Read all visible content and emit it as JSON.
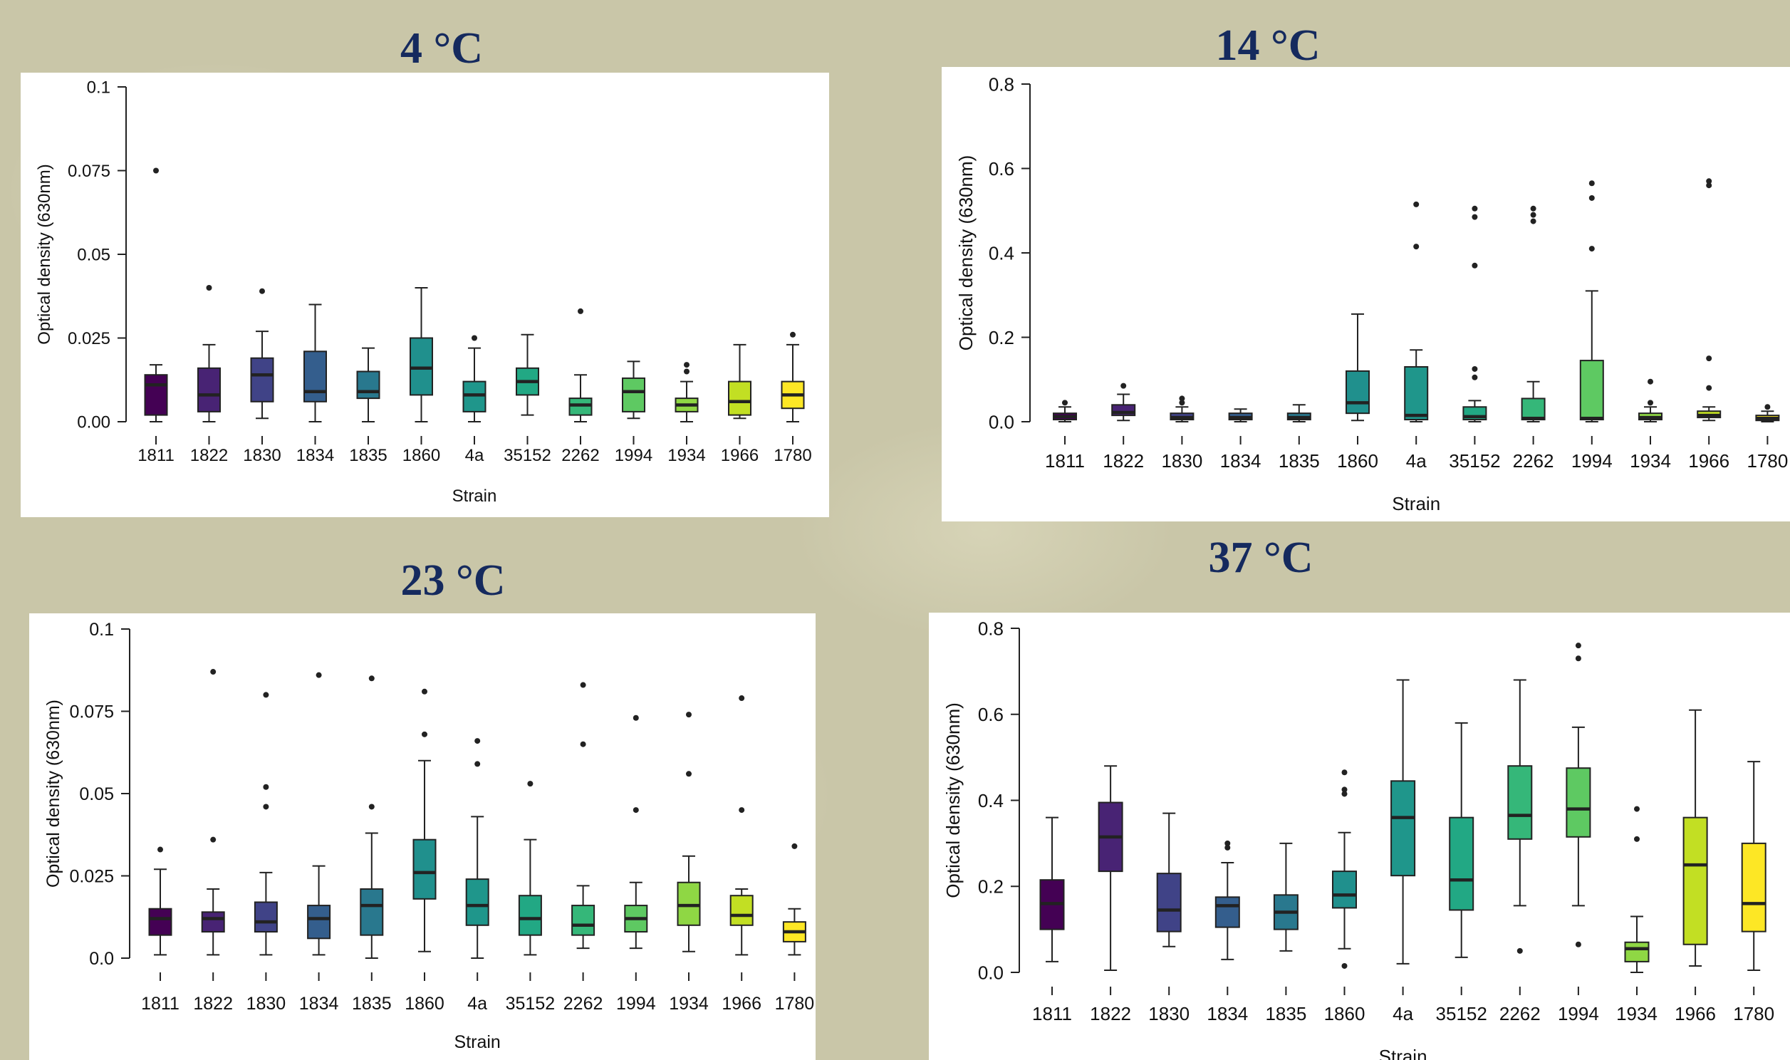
{
  "chart_data": [
    {
      "type": "box",
      "title": "4 °C",
      "xlabel": "Strain",
      "ylabel": "Optical density (630nm)",
      "ylim": [
        0,
        0.1
      ],
      "yticks": [
        0.0,
        0.025,
        0.05,
        0.075,
        0.1
      ],
      "ytick_labels": [
        "0.00",
        "0.025",
        "0.05",
        "0.075",
        "0.1"
      ],
      "categories": [
        "1811",
        "1822",
        "1830",
        "1834",
        "1835",
        "1860",
        "4a",
        "35152",
        "2262",
        "1994",
        "1934",
        "1966",
        "1780"
      ],
      "boxes": [
        {
          "min": 0.0,
          "q1": 0.002,
          "median": 0.011,
          "q3": 0.014,
          "max": 0.017,
          "outliers": [
            0.075
          ]
        },
        {
          "min": 0.0,
          "q1": 0.003,
          "median": 0.008,
          "q3": 0.016,
          "max": 0.023,
          "outliers": [
            0.04
          ]
        },
        {
          "min": 0.001,
          "q1": 0.006,
          "median": 0.014,
          "q3": 0.019,
          "max": 0.027,
          "outliers": [
            0.039
          ]
        },
        {
          "min": 0.0,
          "q1": 0.006,
          "median": 0.009,
          "q3": 0.021,
          "max": 0.035,
          "outliers": []
        },
        {
          "min": 0.0,
          "q1": 0.007,
          "median": 0.009,
          "q3": 0.015,
          "max": 0.022,
          "outliers": []
        },
        {
          "min": 0.0,
          "q1": 0.008,
          "median": 0.016,
          "q3": 0.025,
          "max": 0.04,
          "outliers": []
        },
        {
          "min": 0.0,
          "q1": 0.003,
          "median": 0.008,
          "q3": 0.012,
          "max": 0.022,
          "outliers": [
            0.025
          ]
        },
        {
          "min": 0.002,
          "q1": 0.008,
          "median": 0.012,
          "q3": 0.016,
          "max": 0.026,
          "outliers": []
        },
        {
          "min": 0.0,
          "q1": 0.002,
          "median": 0.005,
          "q3": 0.007,
          "max": 0.014,
          "outliers": [
            0.033
          ]
        },
        {
          "min": 0.001,
          "q1": 0.003,
          "median": 0.009,
          "q3": 0.013,
          "max": 0.018,
          "outliers": []
        },
        {
          "min": 0.0,
          "q1": 0.003,
          "median": 0.005,
          "q3": 0.007,
          "max": 0.012,
          "outliers": [
            0.015,
            0.017
          ]
        },
        {
          "min": 0.001,
          "q1": 0.002,
          "median": 0.006,
          "q3": 0.012,
          "max": 0.023,
          "outliers": []
        },
        {
          "min": 0.0,
          "q1": 0.004,
          "median": 0.008,
          "q3": 0.012,
          "max": 0.023,
          "outliers": [
            0.026
          ]
        }
      ]
    },
    {
      "type": "box",
      "title": "14 °C",
      "xlabel": "Strain",
      "ylabel": "Optical density (630nm)",
      "ylim": [
        0,
        0.8
      ],
      "yticks": [
        0.0,
        0.2,
        0.4,
        0.6,
        0.8
      ],
      "ytick_labels": [
        "0.0",
        "0.2",
        "0.4",
        "0.6",
        "0.8"
      ],
      "categories": [
        "1811",
        "1822",
        "1830",
        "1834",
        "1835",
        "1860",
        "4a",
        "35152",
        "2262",
        "1994",
        "1934",
        "1966",
        "1780"
      ],
      "boxes": [
        {
          "min": 0.0,
          "q1": 0.005,
          "median": 0.012,
          "q3": 0.02,
          "max": 0.035,
          "outliers": [
            0.045
          ]
        },
        {
          "min": 0.003,
          "q1": 0.015,
          "median": 0.022,
          "q3": 0.04,
          "max": 0.065,
          "outliers": [
            0.085
          ]
        },
        {
          "min": 0.0,
          "q1": 0.005,
          "median": 0.01,
          "q3": 0.02,
          "max": 0.035,
          "outliers": [
            0.045,
            0.055
          ]
        },
        {
          "min": 0.0,
          "q1": 0.005,
          "median": 0.01,
          "q3": 0.02,
          "max": 0.03,
          "outliers": []
        },
        {
          "min": 0.0,
          "q1": 0.005,
          "median": 0.01,
          "q3": 0.02,
          "max": 0.04,
          "outliers": []
        },
        {
          "min": 0.003,
          "q1": 0.02,
          "median": 0.045,
          "q3": 0.12,
          "max": 0.255,
          "outliers": []
        },
        {
          "min": 0.0,
          "q1": 0.005,
          "median": 0.015,
          "q3": 0.13,
          "max": 0.17,
          "outliers": [
            0.415,
            0.515
          ]
        },
        {
          "min": 0.0,
          "q1": 0.005,
          "median": 0.012,
          "q3": 0.035,
          "max": 0.05,
          "outliers": [
            0.105,
            0.125,
            0.37,
            0.485,
            0.505
          ]
        },
        {
          "min": 0.0,
          "q1": 0.005,
          "median": 0.008,
          "q3": 0.055,
          "max": 0.095,
          "outliers": [
            0.475,
            0.49,
            0.505
          ]
        },
        {
          "min": 0.0,
          "q1": 0.005,
          "median": 0.008,
          "q3": 0.145,
          "max": 0.31,
          "outliers": [
            0.41,
            0.53,
            0.565
          ]
        },
        {
          "min": 0.0,
          "q1": 0.005,
          "median": 0.01,
          "q3": 0.02,
          "max": 0.035,
          "outliers": [
            0.045,
            0.095
          ]
        },
        {
          "min": 0.003,
          "q1": 0.01,
          "median": 0.015,
          "q3": 0.025,
          "max": 0.035,
          "outliers": [
            0.08,
            0.15,
            0.56,
            0.57
          ]
        },
        {
          "min": 0.0,
          "q1": 0.003,
          "median": 0.008,
          "q3": 0.015,
          "max": 0.025,
          "outliers": [
            0.035
          ]
        }
      ]
    },
    {
      "type": "box",
      "title": "23 °C",
      "xlabel": "Strain",
      "ylabel": "Optical density (630nm)",
      "ylim": [
        0,
        0.1
      ],
      "yticks": [
        0.0,
        0.025,
        0.05,
        0.075,
        0.1
      ],
      "ytick_labels": [
        "0.0",
        "0.025",
        "0.05",
        "0.075",
        "0.1"
      ],
      "categories": [
        "1811",
        "1822",
        "1830",
        "1834",
        "1835",
        "1860",
        "4a",
        "35152",
        "2262",
        "1994",
        "1934",
        "1966",
        "1780"
      ],
      "boxes": [
        {
          "min": 0.001,
          "q1": 0.007,
          "median": 0.012,
          "q3": 0.015,
          "max": 0.027,
          "outliers": [
            0.033
          ]
        },
        {
          "min": 0.001,
          "q1": 0.008,
          "median": 0.012,
          "q3": 0.014,
          "max": 0.021,
          "outliers": [
            0.036,
            0.087
          ]
        },
        {
          "min": 0.001,
          "q1": 0.008,
          "median": 0.011,
          "q3": 0.017,
          "max": 0.026,
          "outliers": [
            0.046,
            0.052,
            0.08
          ]
        },
        {
          "min": 0.001,
          "q1": 0.006,
          "median": 0.012,
          "q3": 0.016,
          "max": 0.028,
          "outliers": [
            0.086
          ]
        },
        {
          "min": 0.0,
          "q1": 0.007,
          "median": 0.016,
          "q3": 0.021,
          "max": 0.038,
          "outliers": [
            0.046,
            0.085
          ]
        },
        {
          "min": 0.002,
          "q1": 0.018,
          "median": 0.026,
          "q3": 0.036,
          "max": 0.06,
          "outliers": [
            0.068,
            0.081
          ]
        },
        {
          "min": 0.0,
          "q1": 0.01,
          "median": 0.016,
          "q3": 0.024,
          "max": 0.043,
          "outliers": [
            0.059,
            0.066
          ]
        },
        {
          "min": 0.001,
          "q1": 0.007,
          "median": 0.012,
          "q3": 0.019,
          "max": 0.036,
          "outliers": [
            0.053
          ]
        },
        {
          "min": 0.003,
          "q1": 0.007,
          "median": 0.01,
          "q3": 0.016,
          "max": 0.022,
          "outliers": [
            0.065,
            0.083
          ]
        },
        {
          "min": 0.003,
          "q1": 0.008,
          "median": 0.012,
          "q3": 0.016,
          "max": 0.023,
          "outliers": [
            0.045,
            0.073
          ]
        },
        {
          "min": 0.002,
          "q1": 0.01,
          "median": 0.016,
          "q3": 0.023,
          "max": 0.031,
          "outliers": [
            0.056,
            0.074
          ]
        },
        {
          "min": 0.001,
          "q1": 0.01,
          "median": 0.013,
          "q3": 0.019,
          "max": 0.021,
          "outliers": [
            0.045,
            0.079
          ]
        },
        {
          "min": 0.001,
          "q1": 0.005,
          "median": 0.008,
          "q3": 0.011,
          "max": 0.015,
          "outliers": [
            0.034
          ]
        }
      ]
    },
    {
      "type": "box",
      "title": "37 °C",
      "xlabel": "Strain",
      "ylabel": "Optical density (630nm)",
      "ylim": [
        0,
        0.8
      ],
      "yticks": [
        0.0,
        0.2,
        0.4,
        0.6,
        0.8
      ],
      "ytick_labels": [
        "0.0",
        "0.2",
        "0.4",
        "0.6",
        "0.8"
      ],
      "categories": [
        "1811",
        "1822",
        "1830",
        "1834",
        "1835",
        "1860",
        "4a",
        "35152",
        "2262",
        "1994",
        "1934",
        "1966",
        "1780"
      ],
      "boxes": [
        {
          "min": 0.025,
          "q1": 0.1,
          "median": 0.16,
          "q3": 0.215,
          "max": 0.36,
          "outliers": []
        },
        {
          "min": 0.005,
          "q1": 0.235,
          "median": 0.315,
          "q3": 0.395,
          "max": 0.48,
          "outliers": []
        },
        {
          "min": 0.06,
          "q1": 0.095,
          "median": 0.145,
          "q3": 0.23,
          "max": 0.37,
          "outliers": []
        },
        {
          "min": 0.03,
          "q1": 0.105,
          "median": 0.155,
          "q3": 0.175,
          "max": 0.255,
          "outliers": [
            0.29,
            0.3
          ]
        },
        {
          "min": 0.05,
          "q1": 0.1,
          "median": 0.14,
          "q3": 0.18,
          "max": 0.3,
          "outliers": []
        },
        {
          "min": 0.055,
          "q1": 0.15,
          "median": 0.18,
          "q3": 0.235,
          "max": 0.325,
          "outliers": [
            0.015,
            0.415,
            0.425,
            0.465
          ]
        },
        {
          "min": 0.02,
          "q1": 0.225,
          "median": 0.36,
          "q3": 0.445,
          "max": 0.68,
          "outliers": []
        },
        {
          "min": 0.035,
          "q1": 0.145,
          "median": 0.215,
          "q3": 0.36,
          "max": 0.58,
          "outliers": []
        },
        {
          "min": 0.155,
          "q1": 0.31,
          "median": 0.365,
          "q3": 0.48,
          "max": 0.68,
          "outliers": [
            0.05
          ]
        },
        {
          "min": 0.155,
          "q1": 0.315,
          "median": 0.38,
          "q3": 0.475,
          "max": 0.57,
          "outliers": [
            0.065,
            0.73,
            0.76
          ]
        },
        {
          "min": 0.0,
          "q1": 0.025,
          "median": 0.055,
          "q3": 0.07,
          "max": 0.13,
          "outliers": [
            0.31,
            0.38
          ]
        },
        {
          "min": 0.015,
          "q1": 0.065,
          "median": 0.25,
          "q3": 0.36,
          "max": 0.61,
          "outliers": []
        },
        {
          "min": 0.005,
          "q1": 0.095,
          "median": 0.16,
          "q3": 0.3,
          "max": 0.49,
          "outliers": []
        }
      ]
    }
  ],
  "colors": [
    "#440154",
    "#482374",
    "#404387",
    "#345e8d",
    "#29788e",
    "#20908d",
    "#1f968b",
    "#22a884",
    "#35b779",
    "#5ec962",
    "#8fd744",
    "#c2df23",
    "#fde725"
  ]
}
